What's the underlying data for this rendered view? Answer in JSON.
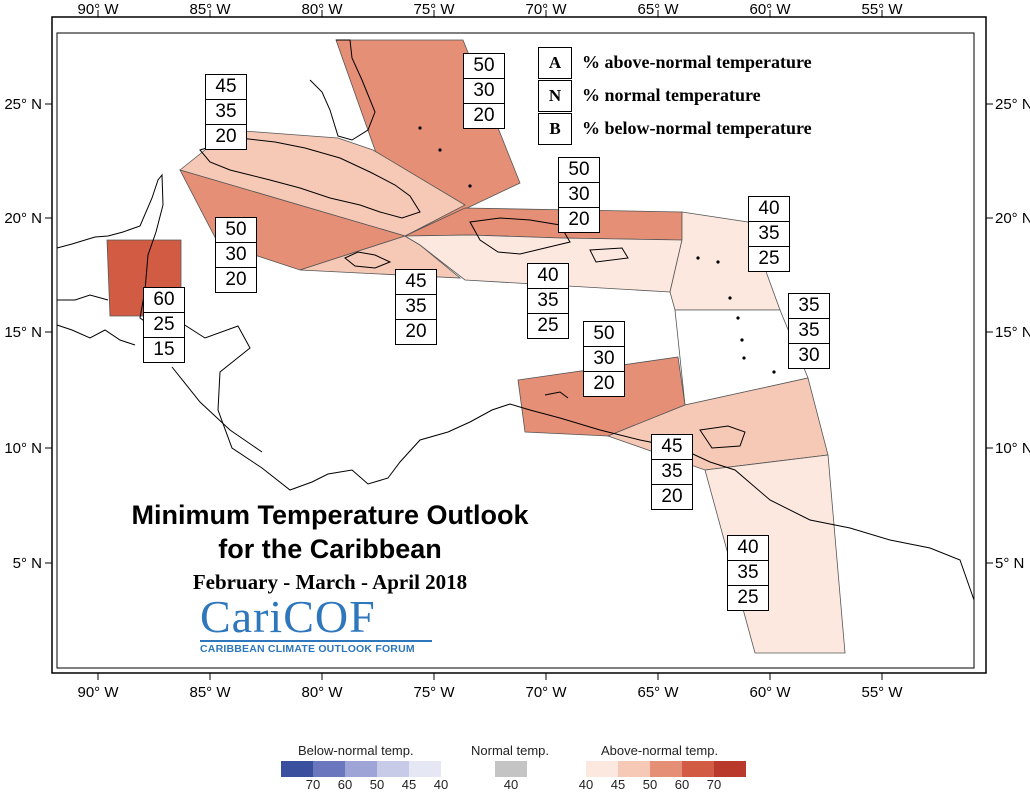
{
  "map": {
    "longitude_labels": [
      "90° W",
      "85° W",
      "80° W",
      "75° W",
      "70° W",
      "65° W",
      "60° W",
      "55° W"
    ],
    "latitude_labels": [
      "25° N",
      "20° N",
      "15° N",
      "10° N",
      "5° N"
    ]
  },
  "key": [
    {
      "letter": "A",
      "text": "% above-normal temperature"
    },
    {
      "letter": "N",
      "text": "% normal temperature"
    },
    {
      "letter": "B",
      "text": "% below-normal temperature"
    }
  ],
  "regions": [
    {
      "name": "bahamas",
      "above": "50",
      "normal": "30",
      "below": "20",
      "color": "#e58f76"
    },
    {
      "name": "cuba",
      "above": "45",
      "normal": "35",
      "below": "20",
      "color": "#f6c9b7"
    },
    {
      "name": "northwest-caribbean",
      "above": "50",
      "normal": "30",
      "below": "20",
      "color": "#e58f76"
    },
    {
      "name": "belize",
      "above": "60",
      "normal": "25",
      "below": "15",
      "color": "#d15c43"
    },
    {
      "name": "turks-caicos-north-hispaniola",
      "above": "50",
      "normal": "30",
      "below": "20",
      "color": "#e58f76"
    },
    {
      "name": "jamaica",
      "above": "45",
      "normal": "35",
      "below": "20",
      "color": "#f6c9b7"
    },
    {
      "name": "hispaniola-puerto-rico",
      "above": "40",
      "normal": "35",
      "below": "25",
      "color": "#fde8df"
    },
    {
      "name": "leeward-islands",
      "above": "40",
      "normal": "35",
      "below": "25",
      "color": "#fde8df"
    },
    {
      "name": "windward-islands",
      "above": "35",
      "normal": "35",
      "below": "30",
      "color": "#ffffff"
    },
    {
      "name": "abc-islands",
      "above": "50",
      "normal": "30",
      "below": "20",
      "color": "#e58f76"
    },
    {
      "name": "trinidad-tobago",
      "above": "45",
      "normal": "35",
      "below": "20",
      "color": "#f6c9b7"
    },
    {
      "name": "guianas",
      "above": "40",
      "normal": "35",
      "below": "25",
      "color": "#fde8df"
    }
  ],
  "title": {
    "line1": "Minimum Temperature Outlook",
    "line2": "for the Caribbean",
    "period": "February - March - April 2018"
  },
  "logo": {
    "main": "CariCOF",
    "sub": "CARIBBEAN CLIMATE OUTLOOK FORUM"
  },
  "scale": {
    "below_title": "Below-normal temp.",
    "normal_title": "Normal temp.",
    "above_title": "Above-normal temp.",
    "below_labels": [
      "70",
      "60",
      "50",
      "45",
      "40"
    ],
    "normal_labels": [
      "40"
    ],
    "above_labels": [
      "40",
      "45",
      "50",
      "60",
      "70"
    ],
    "below_colors": [
      "#3b4f9f",
      "#6a76bd",
      "#9ea5d6",
      "#c8cbe8",
      "#e6e7f5"
    ],
    "normal_color": "#c4c4c4",
    "above_colors": [
      "#fde8df",
      "#f6c9b7",
      "#e58f76",
      "#d15c43",
      "#b93a2a"
    ]
  }
}
